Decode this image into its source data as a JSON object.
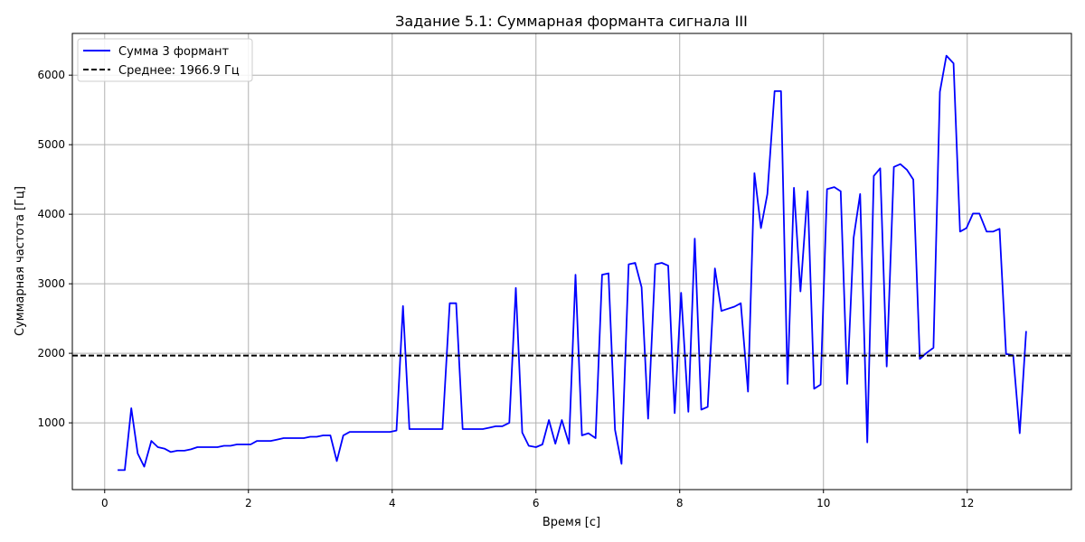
{
  "chart_data": {
    "type": "line",
    "title": "Задание 5.1: Суммарная форманта сигнала III",
    "xlabel": "Время [с]",
    "ylabel": "Суммарная частота [Гц]",
    "xlim": [
      -0.45,
      13.45
    ],
    "ylim": [
      40,
      6600
    ],
    "xticks": [
      0,
      2,
      4,
      6,
      8,
      10,
      12
    ],
    "xtick_labels": [
      "0",
      "2",
      "4",
      "6",
      "8",
      "10",
      "12"
    ],
    "yticks": [
      1000,
      2000,
      3000,
      4000,
      5000,
      6000
    ],
    "ytick_labels": [
      "1000",
      "2000",
      "3000",
      "4000",
      "5000",
      "6000"
    ],
    "grid": true,
    "legend_position": "upper-left",
    "series": [
      {
        "name": "Сумма 3 формант",
        "color": "#0000ff",
        "style": "solid",
        "x": [
          0.18,
          0.28,
          0.37,
          0.46,
          0.55,
          0.65,
          0.74,
          0.83,
          0.92,
          1.01,
          1.11,
          1.2,
          1.29,
          1.38,
          1.48,
          1.57,
          1.66,
          1.75,
          1.84,
          1.94,
          2.03,
          2.12,
          2.21,
          2.31,
          2.4,
          2.49,
          2.58,
          2.67,
          2.77,
          2.86,
          2.95,
          3.04,
          3.14,
          3.23,
          3.32,
          3.41,
          3.5,
          3.6,
          3.69,
          3.78,
          3.87,
          3.97,
          4.06,
          4.15,
          4.24,
          4.33,
          4.43,
          4.52,
          4.61,
          4.7,
          4.8,
          4.89,
          4.98,
          5.07,
          5.17,
          5.26,
          5.35,
          5.44,
          5.53,
          5.63,
          5.72,
          5.81,
          5.9,
          6.0,
          6.09,
          6.18,
          6.27,
          6.36,
          6.46,
          6.55,
          6.64,
          6.73,
          6.83,
          6.92,
          7.01,
          7.1,
          7.19,
          7.29,
          7.38,
          7.47,
          7.56,
          7.66,
          7.75,
          7.84,
          7.93,
          8.02,
          8.12,
          8.21,
          8.3,
          8.39,
          8.49,
          8.58,
          8.67,
          8.76,
          8.85,
          8.95,
          9.04,
          9.13,
          9.22,
          9.32,
          9.41,
          9.5,
          9.59,
          9.68,
          9.78,
          9.87,
          9.96,
          10.05,
          10.15,
          10.24,
          10.33,
          10.42,
          10.51,
          10.61,
          10.7,
          10.79,
          10.88,
          10.98,
          11.07,
          11.16,
          11.25,
          11.34,
          11.44,
          11.53,
          11.62,
          11.71,
          11.81,
          11.9,
          11.99,
          12.08,
          12.17,
          12.27,
          12.36,
          12.45,
          12.54,
          12.64,
          12.73,
          12.82
        ],
        "y": [
          320,
          320,
          1210,
          560,
          370,
          740,
          650,
          630,
          580,
          600,
          600,
          620,
          650,
          650,
          650,
          650,
          670,
          670,
          690,
          690,
          690,
          740,
          740,
          740,
          760,
          780,
          780,
          780,
          780,
          800,
          800,
          820,
          820,
          450,
          820,
          870,
          870,
          870,
          870,
          870,
          870,
          870,
          890,
          2680,
          910,
          910,
          910,
          910,
          910,
          910,
          2720,
          2720,
          910,
          910,
          910,
          910,
          930,
          950,
          950,
          1000,
          2940,
          860,
          670,
          650,
          690,
          1040,
          700,
          1040,
          700,
          3130,
          820,
          850,
          780,
          3130,
          3150,
          900,
          410,
          3280,
          3300,
          2950,
          1060,
          3280,
          3300,
          3260,
          1140,
          2870,
          1160,
          3650,
          1190,
          1230,
          3220,
          2610,
          2640,
          2670,
          2720,
          1450,
          4590,
          3800,
          4290,
          5770,
          5770,
          1560,
          4380,
          2890,
          4330,
          1490,
          1550,
          4360,
          4390,
          4330,
          1560,
          3660,
          4290,
          720,
          4550,
          4660,
          1810,
          4680,
          4720,
          4640,
          4500,
          1920,
          2010,
          2080,
          5760,
          6280,
          6170,
          3750,
          3800,
          4010,
          4010,
          3750,
          3750,
          3790,
          1990,
          1970,
          850,
          2320
        ]
      },
      {
        "name": "Среднее: 1966.9 Гц",
        "color": "#000000",
        "style": "dashed",
        "y_constant": 1966.9
      }
    ]
  }
}
